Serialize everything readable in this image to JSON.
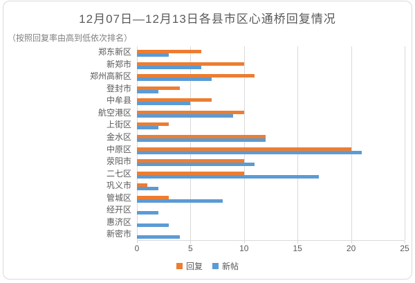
{
  "chart": {
    "title": "12月07日—12月13日各县市区心通桥回复情况",
    "subtitle": "（按照回复率由高到低依次排名）"
  },
  "chart_data": {
    "type": "bar",
    "orientation": "horizontal",
    "title": "12月07日—12月13日各县市区心通桥回复情况",
    "subtitle": "（按照回复率由高到低依次排名）",
    "categories": [
      "郑东新区",
      "新郑市",
      "郑州高新区",
      "登封市",
      "中牟县",
      "航空港区",
      "上街区",
      "金水区",
      "中原区",
      "荥阳市",
      "二七区",
      "巩义市",
      "管城区",
      "经开区",
      "惠济区",
      "新密市"
    ],
    "series": [
      {
        "name": "回复",
        "color": "#ED7D31",
        "values": [
          6,
          10,
          11,
          4,
          7,
          10,
          3,
          12,
          20,
          10,
          10,
          1,
          3,
          0,
          0,
          0
        ]
      },
      {
        "name": "新帖",
        "color": "#5B9BD5",
        "values": [
          3,
          6,
          7,
          2,
          5,
          9,
          2,
          12,
          21,
          11,
          17,
          2,
          8,
          2,
          3,
          4
        ]
      }
    ],
    "xlim": [
      0,
      25
    ],
    "xticks": [
      0,
      5,
      10,
      15,
      20,
      25
    ],
    "grid": "vertical",
    "gridline_color": "#D9D9D9",
    "text_color": "#595959",
    "legend_position": "bottom"
  }
}
